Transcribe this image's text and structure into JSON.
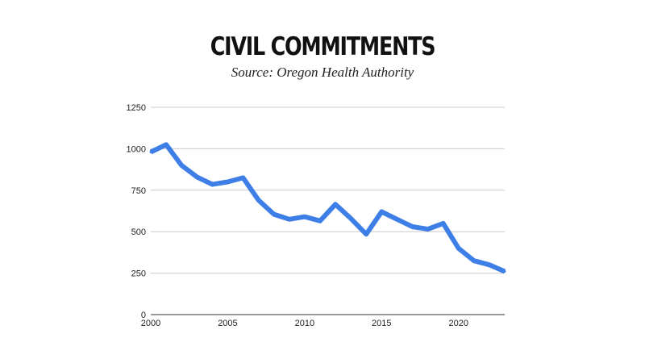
{
  "chart_data": {
    "type": "line",
    "title": "CIVIL COMMITMENTS",
    "subtitle": "Source: Oregon Health Authority",
    "xlabel": "",
    "ylabel": "",
    "xlim": [
      2000,
      2023
    ],
    "ylim": [
      0,
      1250
    ],
    "x_ticks": [
      2000,
      2005,
      2010,
      2015,
      2020
    ],
    "y_ticks": [
      0,
      250,
      500,
      750,
      1000,
      1250
    ],
    "grid": true,
    "legend": "none",
    "line_color": "#3d7fe6",
    "x": [
      2000,
      2001,
      2002,
      2003,
      2004,
      2005,
      2006,
      2007,
      2008,
      2009,
      2010,
      2011,
      2012,
      2013,
      2014,
      2015,
      2016,
      2017,
      2018,
      2019,
      2020,
      2021,
      2022,
      2023
    ],
    "series": [
      {
        "values": [
          980,
          1025,
          900,
          830,
          785,
          800,
          825,
          690,
          605,
          575,
          590,
          565,
          665,
          580,
          485,
          620,
          575,
          530,
          515,
          550,
          400,
          325,
          300,
          260
        ]
      }
    ]
  }
}
